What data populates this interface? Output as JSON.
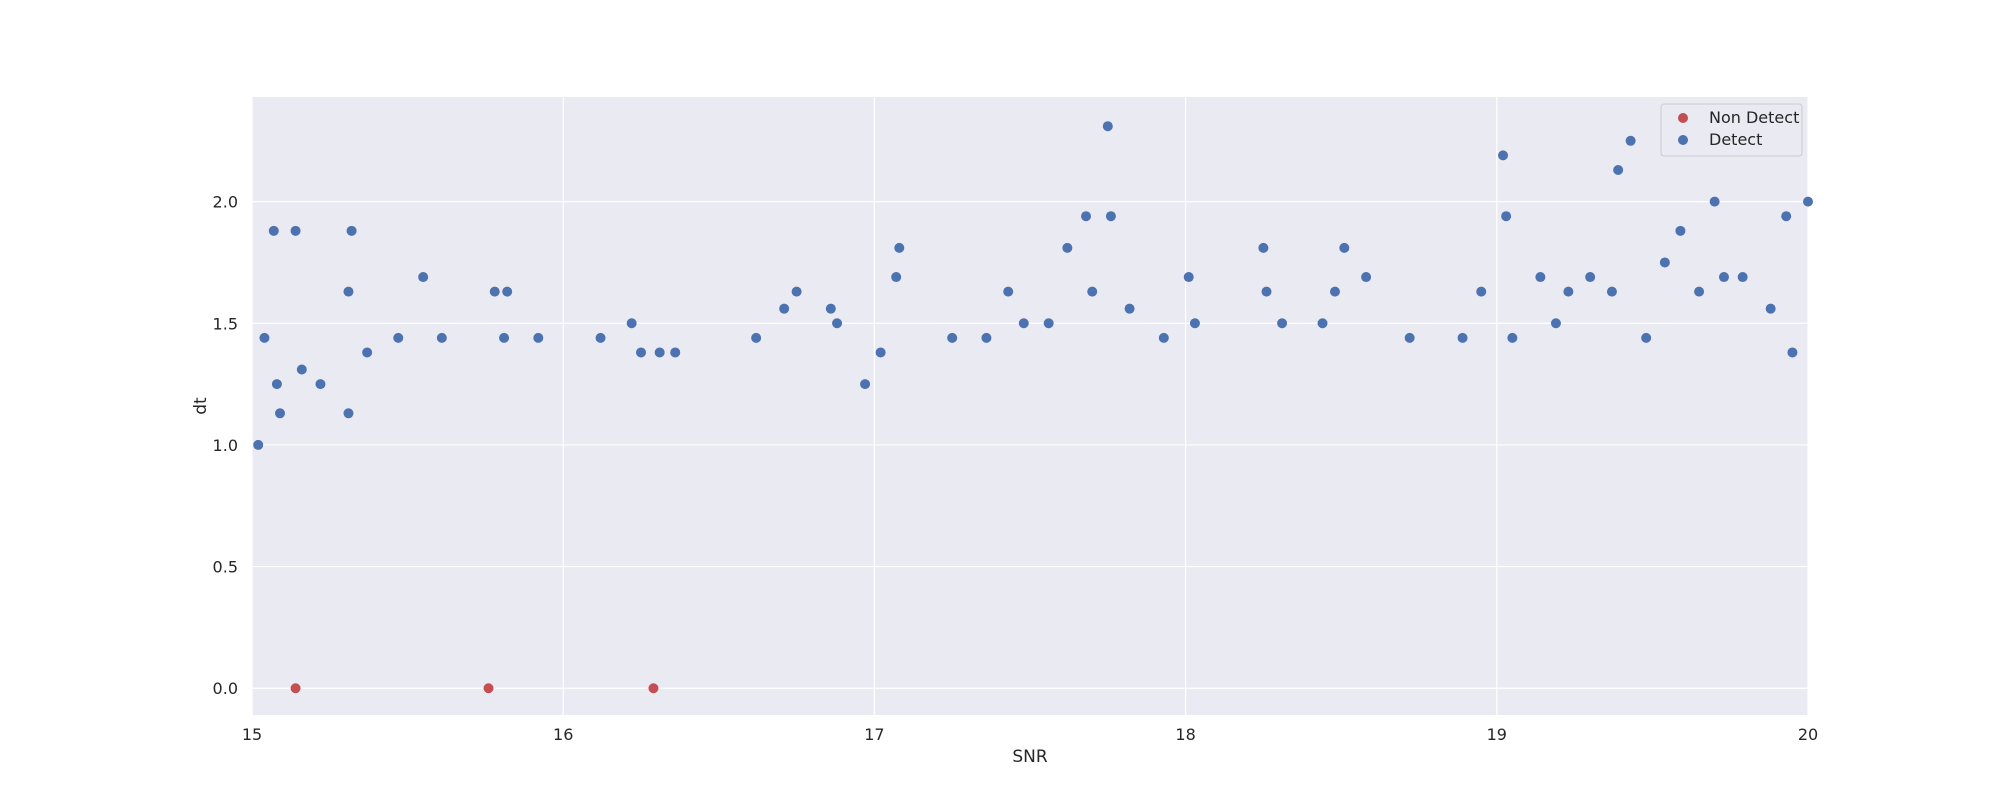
{
  "chart_data": {
    "type": "scatter",
    "title": "",
    "xlabel": "SNR",
    "ylabel": "dt",
    "xlim": [
      15,
      20
    ],
    "ylim": [
      -0.11,
      2.43
    ],
    "xticks": [
      15,
      16,
      17,
      18,
      19,
      20
    ],
    "yticks": [
      0.0,
      0.5,
      1.0,
      1.5,
      2.0
    ],
    "xtick_labels": [
      "15",
      "16",
      "17",
      "18",
      "19",
      "20"
    ],
    "ytick_labels": [
      "0.0",
      "0.5",
      "1.0",
      "1.5",
      "2.0"
    ],
    "grid": true,
    "legend_position": "top-right",
    "series": [
      {
        "name": "Non Detect",
        "color": "#c44e52",
        "x": [
          15.14,
          15.76,
          16.29
        ],
        "y": [
          0.0,
          0.0,
          0.0
        ]
      },
      {
        "name": "Detect",
        "color": "#4c72b0",
        "x": [
          15.02,
          15.07,
          15.14,
          15.32,
          15.31,
          15.55,
          15.78,
          15.82,
          15.31,
          15.04,
          15.08,
          15.09,
          15.16,
          15.22,
          15.37,
          15.47,
          15.61,
          15.81,
          15.92,
          16.12,
          16.22,
          16.25,
          16.31,
          16.36,
          16.62,
          16.71,
          16.75,
          16.86,
          16.88,
          16.97,
          17.02,
          17.07,
          17.08,
          17.25,
          17.36,
          17.43,
          17.48,
          17.56,
          17.62,
          17.68,
          17.7,
          17.75,
          17.76,
          17.82,
          17.93,
          18.01,
          18.03,
          18.25,
          18.26,
          18.31,
          18.44,
          18.48,
          18.51,
          18.58,
          18.72,
          18.89,
          18.95,
          19.02,
          19.03,
          19.05,
          19.14,
          19.19,
          19.23,
          19.3,
          19.37,
          19.39,
          19.43,
          19.48,
          19.54,
          19.59,
          19.65,
          19.7,
          19.73,
          19.79,
          19.88,
          19.93,
          19.95,
          20.0
        ],
        "y": [
          1.0,
          1.88,
          1.88,
          1.88,
          1.63,
          1.69,
          1.63,
          1.63,
          1.13,
          1.44,
          1.25,
          1.13,
          1.31,
          1.25,
          1.38,
          1.44,
          1.44,
          1.44,
          1.44,
          1.44,
          1.5,
          1.38,
          1.38,
          1.38,
          1.44,
          1.56,
          1.63,
          1.56,
          1.5,
          1.25,
          1.38,
          1.69,
          1.81,
          1.44,
          1.44,
          1.63,
          1.5,
          1.5,
          1.81,
          1.94,
          1.63,
          2.31,
          1.94,
          1.56,
          1.44,
          1.69,
          1.5,
          1.81,
          1.63,
          1.5,
          1.5,
          1.63,
          1.81,
          1.69,
          1.44,
          1.44,
          1.63,
          2.19,
          1.94,
          1.44,
          1.69,
          1.5,
          1.63,
          1.69,
          1.63,
          2.13,
          2.25,
          1.44,
          1.75,
          1.88,
          1.63,
          2.0,
          1.69,
          1.69,
          1.56,
          1.94,
          1.38,
          2.0
        ]
      }
    ]
  }
}
